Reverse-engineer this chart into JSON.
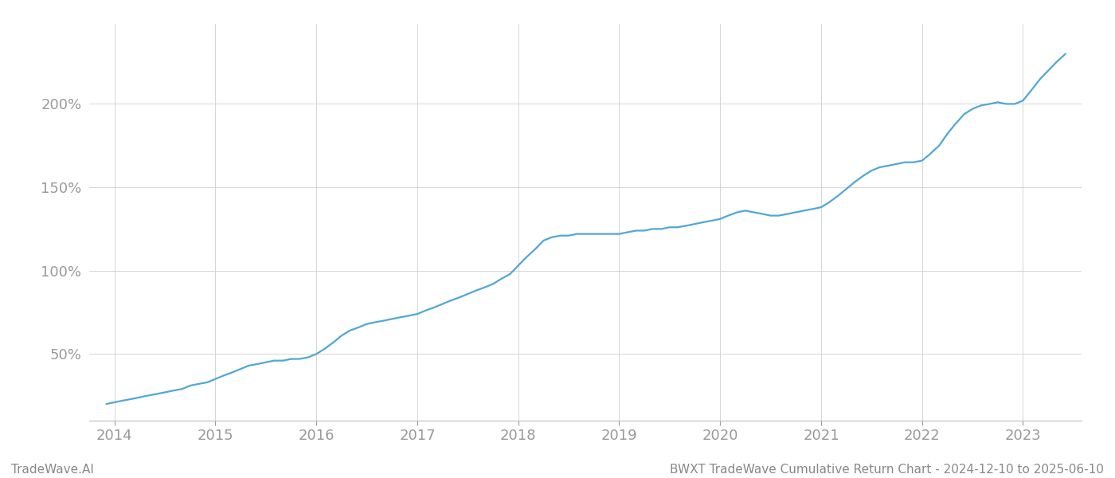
{
  "title": "BWXT TradeWave Cumulative Return Chart - 2024-12-10 to 2025-06-10",
  "watermark": "TradeWave.AI",
  "line_color": "#4fa8d5",
  "line_width": 1.6,
  "background_color": "#ffffff",
  "grid_color": "#d0d0d0",
  "x_years": [
    2014,
    2015,
    2016,
    2017,
    2018,
    2019,
    2020,
    2021,
    2022,
    2023
  ],
  "x_data": [
    2013.92,
    2014.0,
    2014.08,
    2014.17,
    2014.25,
    2014.33,
    2014.42,
    2014.5,
    2014.58,
    2014.67,
    2014.75,
    2014.83,
    2014.92,
    2015.0,
    2015.08,
    2015.17,
    2015.25,
    2015.33,
    2015.42,
    2015.5,
    2015.58,
    2015.67,
    2015.75,
    2015.83,
    2015.92,
    2016.0,
    2016.08,
    2016.17,
    2016.25,
    2016.33,
    2016.42,
    2016.5,
    2016.58,
    2016.67,
    2016.75,
    2016.83,
    2016.92,
    2017.0,
    2017.08,
    2017.17,
    2017.25,
    2017.33,
    2017.42,
    2017.5,
    2017.58,
    2017.67,
    2017.75,
    2017.83,
    2017.92,
    2018.0,
    2018.08,
    2018.17,
    2018.25,
    2018.33,
    2018.42,
    2018.5,
    2018.58,
    2018.67,
    2018.75,
    2018.83,
    2018.92,
    2019.0,
    2019.08,
    2019.17,
    2019.25,
    2019.33,
    2019.42,
    2019.5,
    2019.58,
    2019.67,
    2019.75,
    2019.83,
    2019.92,
    2020.0,
    2020.08,
    2020.17,
    2020.25,
    2020.33,
    2020.42,
    2020.5,
    2020.58,
    2020.67,
    2020.75,
    2020.83,
    2020.92,
    2021.0,
    2021.08,
    2021.17,
    2021.25,
    2021.33,
    2021.42,
    2021.5,
    2021.58,
    2021.67,
    2021.75,
    2021.83,
    2021.92,
    2022.0,
    2022.08,
    2022.17,
    2022.25,
    2022.33,
    2022.42,
    2022.5,
    2022.58,
    2022.67,
    2022.75,
    2022.83,
    2022.92,
    2023.0,
    2023.08,
    2023.17,
    2023.25,
    2023.33,
    2023.42
  ],
  "y_data": [
    20,
    21,
    22,
    23,
    24,
    25,
    26,
    27,
    28,
    29,
    31,
    32,
    33,
    35,
    37,
    39,
    41,
    43,
    44,
    45,
    46,
    46,
    47,
    47,
    48,
    50,
    53,
    57,
    61,
    64,
    66,
    68,
    69,
    70,
    71,
    72,
    73,
    74,
    76,
    78,
    80,
    82,
    84,
    86,
    88,
    90,
    92,
    95,
    98,
    103,
    108,
    113,
    118,
    120,
    121,
    121,
    122,
    122,
    122,
    122,
    122,
    122,
    123,
    124,
    124,
    125,
    125,
    126,
    126,
    127,
    128,
    129,
    130,
    131,
    133,
    135,
    136,
    135,
    134,
    133,
    133,
    134,
    135,
    136,
    137,
    138,
    141,
    145,
    149,
    153,
    157,
    160,
    162,
    163,
    164,
    165,
    165,
    166,
    170,
    175,
    182,
    188,
    194,
    197,
    199,
    200,
    201,
    200,
    200,
    202,
    208,
    215,
    220,
    225,
    230
  ],
  "yticks": [
    50,
    100,
    150,
    200
  ],
  "ytick_labels": [
    "50%",
    "100%",
    "150%",
    "200%"
  ],
  "ylim": [
    10,
    248
  ],
  "xlim": [
    2013.75,
    2023.58
  ],
  "tick_color": "#999999",
  "tick_fontsize": 13,
  "footer_fontsize": 11,
  "footer_color": "#888888"
}
